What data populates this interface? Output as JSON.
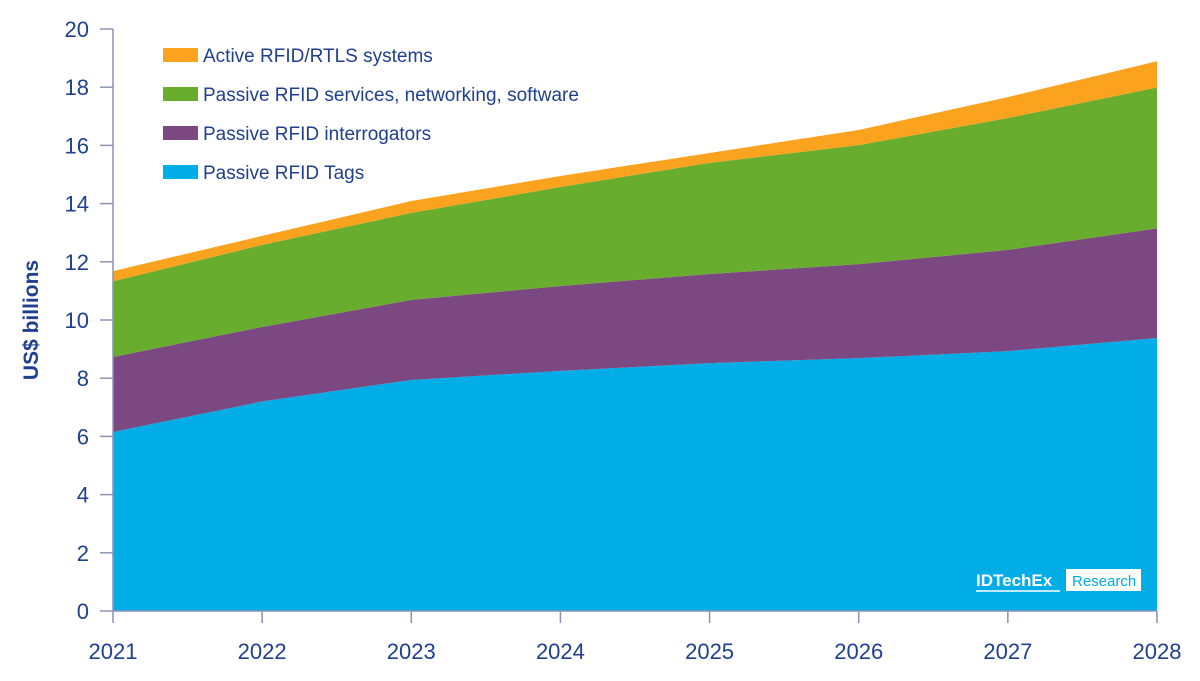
{
  "chart_data": {
    "type": "area",
    "stacked": true,
    "title": "",
    "xlabel": "",
    "ylabel": "US$ billions",
    "ylim": [
      0,
      20
    ],
    "yticks": [
      0,
      2,
      4,
      6,
      8,
      10,
      12,
      14,
      16,
      18,
      20
    ],
    "categories": [
      "2021",
      "2022",
      "2023",
      "2024",
      "2025",
      "2026",
      "2027",
      "2028"
    ],
    "grid": false,
    "legend_placement": "top-left",
    "series": [
      {
        "name": "Passive RFID Tags",
        "color": "#00ade6",
        "values": [
          6.15,
          7.2,
          7.94,
          8.25,
          8.52,
          8.69,
          8.93,
          9.38
        ]
      },
      {
        "name": "Passive RFID interrogators",
        "color": "#7c4882",
        "values": [
          2.58,
          2.56,
          2.75,
          2.92,
          3.06,
          3.23,
          3.48,
          3.77
        ]
      },
      {
        "name": "Passive RFID services, networking, software",
        "color": "#68ad2e",
        "values": [
          2.6,
          2.82,
          2.99,
          3.4,
          3.82,
          4.09,
          4.53,
          4.84
        ]
      },
      {
        "name": "Active RFID/RTLS systems",
        "color": "#fba31e",
        "values": [
          0.35,
          0.31,
          0.41,
          0.38,
          0.34,
          0.52,
          0.72,
          0.9
        ]
      }
    ],
    "axis_text_color": "#1f3f8f"
  },
  "logo": {
    "brand": "IDTechEx",
    "tag": "Research"
  }
}
